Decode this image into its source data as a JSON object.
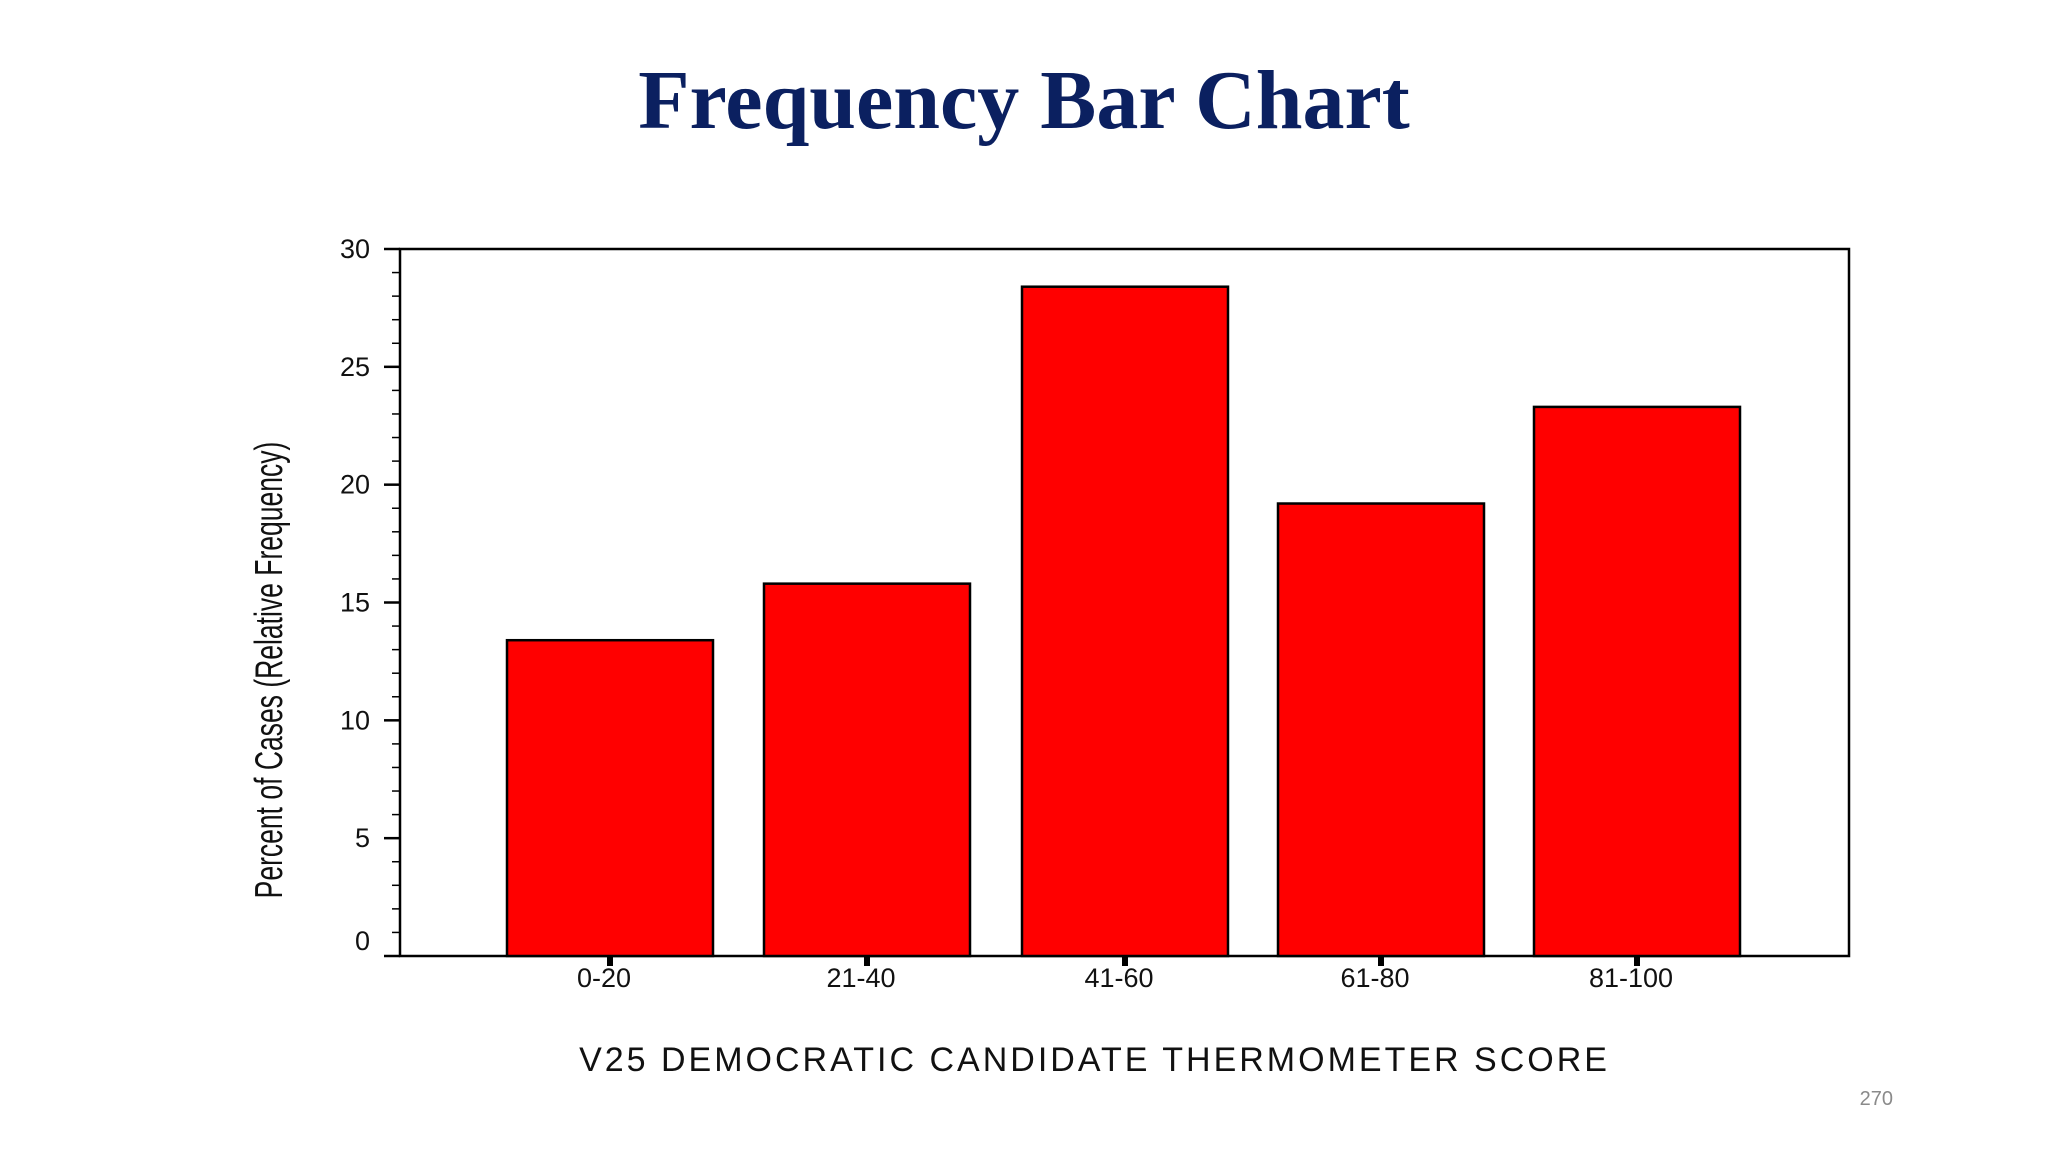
{
  "slide": {
    "title": "Frequency Bar Chart",
    "page_number": "270"
  },
  "colors": {
    "title": "#0b2060",
    "bar_fill": "#ff0000",
    "bar_stroke": "#000000",
    "axis": "#000000"
  },
  "chart_data": {
    "type": "bar",
    "categories": [
      "0-20",
      "21-40",
      "41-60",
      "61-80",
      "81-100"
    ],
    "values": [
      13.4,
      15.8,
      28.4,
      19.2,
      23.3
    ],
    "xlabel": "V25 DEMOCRATIC CANDIDATE THERMOMETER SCORE",
    "ylabel": "Percent of Cases (Relative Frequency)",
    "ylim": [
      0,
      30
    ],
    "yticks": [
      0,
      5,
      10,
      15,
      20,
      25,
      30
    ],
    "grid": false,
    "legend": "none"
  }
}
